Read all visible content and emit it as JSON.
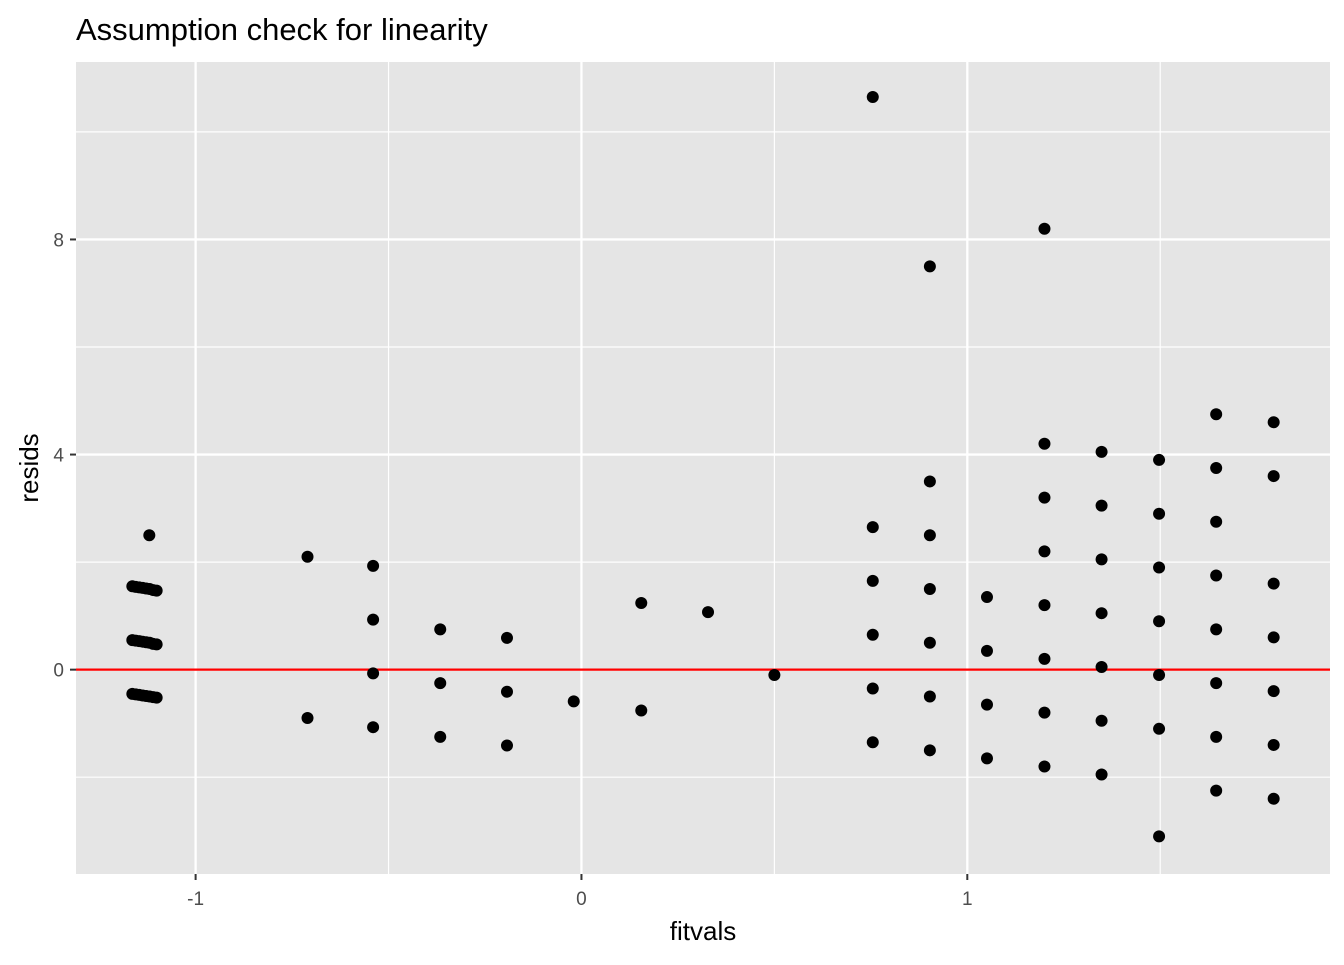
{
  "chart_data": {
    "type": "scatter",
    "title": "Assumption check for linearity",
    "xlabel": "fitvals",
    "ylabel": "resids",
    "xlim": [
      -1.31,
      1.94
    ],
    "ylim": [
      -3.8,
      11.3
    ],
    "x_major_ticks": [
      -1,
      0,
      1
    ],
    "x_tick_labels": [
      "-1",
      "0",
      "1"
    ],
    "x_minor_ticks": [
      -0.5,
      0.5,
      1.5
    ],
    "y_major_ticks": [
      0,
      4,
      8
    ],
    "y_tick_labels": [
      "0",
      "4",
      "8"
    ],
    "y_minor_ticks": [
      -2,
      2,
      6,
      10
    ],
    "grid": true,
    "reference_line": {
      "y": 0,
      "color": "#ff0000"
    },
    "colors": {
      "panel_background": "#e5e5e5",
      "grid": "#ffffff",
      "points": "#000000",
      "reference_line": "#ff0000"
    },
    "points": [
      {
        "x": -1.164,
        "y": 1.55
      },
      {
        "x": -1.155,
        "y": 1.54
      },
      {
        "x": -1.146,
        "y": 1.53
      },
      {
        "x": -1.137,
        "y": 1.52
      },
      {
        "x": -1.128,
        "y": 1.51
      },
      {
        "x": -1.119,
        "y": 1.5
      },
      {
        "x": -1.11,
        "y": 1.48
      },
      {
        "x": -1.101,
        "y": 1.47
      },
      {
        "x": -1.164,
        "y": 0.55
      },
      {
        "x": -1.155,
        "y": 0.54
      },
      {
        "x": -1.146,
        "y": 0.53
      },
      {
        "x": -1.137,
        "y": 0.52
      },
      {
        "x": -1.128,
        "y": 0.51
      },
      {
        "x": -1.119,
        "y": 0.5
      },
      {
        "x": -1.11,
        "y": 0.48
      },
      {
        "x": -1.101,
        "y": 0.47
      },
      {
        "x": -1.164,
        "y": -0.45
      },
      {
        "x": -1.155,
        "y": -0.46
      },
      {
        "x": -1.146,
        "y": -0.47
      },
      {
        "x": -1.137,
        "y": -0.48
      },
      {
        "x": -1.128,
        "y": -0.49
      },
      {
        "x": -1.119,
        "y": -0.5
      },
      {
        "x": -1.11,
        "y": -0.51
      },
      {
        "x": -1.101,
        "y": -0.52
      },
      {
        "x": -1.12,
        "y": 2.5
      },
      {
        "x": -0.71,
        "y": 2.1
      },
      {
        "x": -0.71,
        "y": -0.9
      },
      {
        "x": -0.54,
        "y": 1.93
      },
      {
        "x": -0.54,
        "y": 0.93
      },
      {
        "x": -0.54,
        "y": -0.07
      },
      {
        "x": -0.54,
        "y": -1.07
      },
      {
        "x": -0.366,
        "y": 0.75
      },
      {
        "x": -0.366,
        "y": -0.25
      },
      {
        "x": -0.366,
        "y": -1.25
      },
      {
        "x": -0.193,
        "y": 0.59
      },
      {
        "x": -0.193,
        "y": -0.41
      },
      {
        "x": -0.193,
        "y": -1.41
      },
      {
        "x": -0.02,
        "y": -0.59
      },
      {
        "x": 0.155,
        "y": 1.24
      },
      {
        "x": 0.155,
        "y": -0.76
      },
      {
        "x": 0.328,
        "y": 1.07
      },
      {
        "x": 0.5,
        "y": -0.1
      },
      {
        "x": 0.755,
        "y": 10.65
      },
      {
        "x": 0.755,
        "y": 2.65
      },
      {
        "x": 0.755,
        "y": 1.65
      },
      {
        "x": 0.755,
        "y": 0.65
      },
      {
        "x": 0.755,
        "y": -0.35
      },
      {
        "x": 0.755,
        "y": -1.35
      },
      {
        "x": 0.903,
        "y": 7.5
      },
      {
        "x": 0.903,
        "y": 3.5
      },
      {
        "x": 0.903,
        "y": 2.5
      },
      {
        "x": 0.903,
        "y": 1.5
      },
      {
        "x": 0.903,
        "y": 0.5
      },
      {
        "x": 0.903,
        "y": -0.5
      },
      {
        "x": 0.903,
        "y": -1.5
      },
      {
        "x": 1.051,
        "y": 1.35
      },
      {
        "x": 1.051,
        "y": 0.35
      },
      {
        "x": 1.051,
        "y": -0.65
      },
      {
        "x": 1.051,
        "y": -1.65
      },
      {
        "x": 1.2,
        "y": 8.2
      },
      {
        "x": 1.2,
        "y": 4.2
      },
      {
        "x": 1.2,
        "y": 3.2
      },
      {
        "x": 1.2,
        "y": 2.2
      },
      {
        "x": 1.2,
        "y": 1.2
      },
      {
        "x": 1.2,
        "y": 0.2
      },
      {
        "x": 1.2,
        "y": -0.8
      },
      {
        "x": 1.2,
        "y": -1.8
      },
      {
        "x": 1.348,
        "y": 4.05
      },
      {
        "x": 1.348,
        "y": 3.05
      },
      {
        "x": 1.348,
        "y": 2.05
      },
      {
        "x": 1.348,
        "y": 1.05
      },
      {
        "x": 1.348,
        "y": 0.05
      },
      {
        "x": 1.348,
        "y": -0.95
      },
      {
        "x": 1.348,
        "y": -1.95
      },
      {
        "x": 1.497,
        "y": 3.9
      },
      {
        "x": 1.497,
        "y": 2.9
      },
      {
        "x": 1.497,
        "y": 1.9
      },
      {
        "x": 1.497,
        "y": 0.9
      },
      {
        "x": 1.497,
        "y": -0.1
      },
      {
        "x": 1.497,
        "y": -1.1
      },
      {
        "x": 1.497,
        "y": -3.1
      },
      {
        "x": 1.645,
        "y": 4.75
      },
      {
        "x": 1.645,
        "y": 3.75
      },
      {
        "x": 1.645,
        "y": 2.75
      },
      {
        "x": 1.645,
        "y": 1.75
      },
      {
        "x": 1.645,
        "y": 0.75
      },
      {
        "x": 1.645,
        "y": -0.25
      },
      {
        "x": 1.645,
        "y": -1.25
      },
      {
        "x": 1.645,
        "y": -2.25
      },
      {
        "x": 1.794,
        "y": 4.6
      },
      {
        "x": 1.794,
        "y": 3.6
      },
      {
        "x": 1.794,
        "y": 1.6
      },
      {
        "x": 1.794,
        "y": 0.6
      },
      {
        "x": 1.794,
        "y": -0.4
      },
      {
        "x": 1.794,
        "y": -1.4
      },
      {
        "x": 1.794,
        "y": -2.4
      }
    ]
  }
}
